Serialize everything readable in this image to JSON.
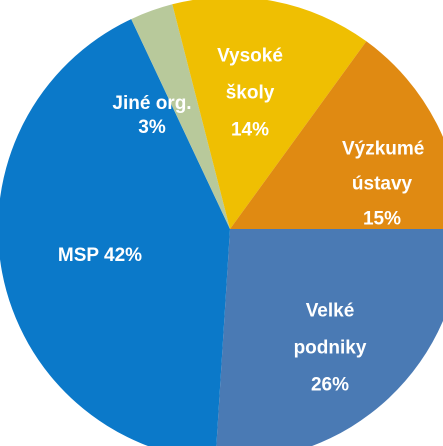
{
  "chart_data": {
    "type": "pie",
    "categories": [
      "Velké podniky",
      "MSP",
      "Jiné org.",
      "Vysoké školy",
      "Výzkumé ústavy"
    ],
    "values": [
      26,
      42,
      3,
      14,
      15
    ],
    "value_labels": [
      "26%",
      "42%",
      "3%",
      "14%",
      "15%"
    ],
    "colors": [
      "#4a7ab4",
      "#0b79c9",
      "#b8c99b",
      "#efbf02",
      "#e08a12"
    ]
  }
}
